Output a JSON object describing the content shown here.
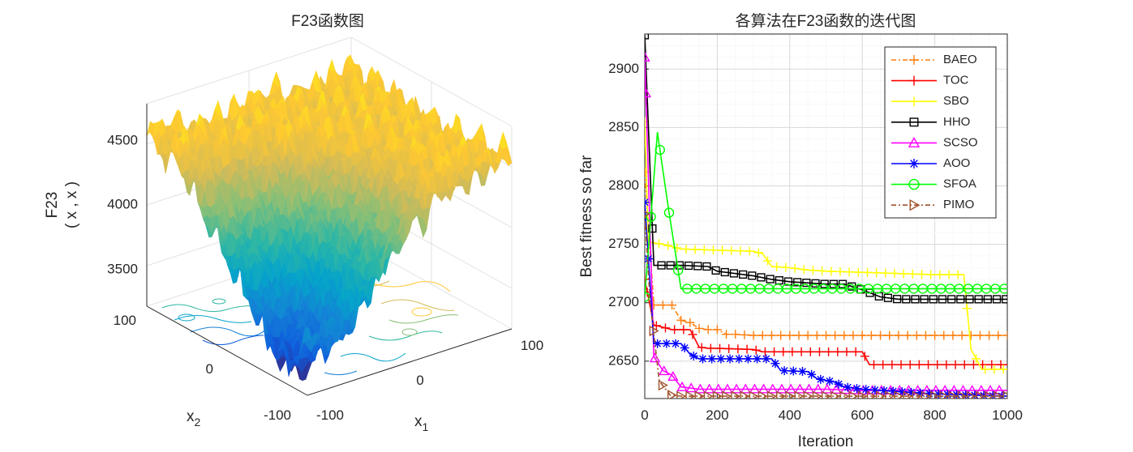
{
  "chart_data": [
    {
      "type": "surface",
      "title": "F23函数图",
      "xlabel": "x",
      "xlabel_sub": "1",
      "ylabel": "x",
      "ylabel_sub": "2",
      "zlabel_line1": "F23",
      "zlabel_line2": "( x , x )",
      "zlabel_sub1": "1",
      "zlabel_sub2": "2",
      "xlim": [
        -100,
        100
      ],
      "ylim": [
        -100,
        100
      ],
      "zticks": [
        "3500",
        "4000",
        "4500"
      ],
      "xticks": [
        "-100",
        "0",
        "100"
      ],
      "yticks": [
        "-100",
        "0",
        "100"
      ],
      "colormap": [
        "#352a87",
        "#0f5cdd",
        "#1481d6",
        "#06a4ca",
        "#2eb7a4",
        "#87bf77",
        "#d1bb59",
        "#fec832",
        "#f9fb0e"
      ]
    },
    {
      "type": "line",
      "title": "各算法在F23函数的迭代图",
      "xlabel": "Iteration",
      "ylabel": "Best fitness so far",
      "xlim": [
        0,
        1000
      ],
      "ylim": [
        2618,
        2930
      ],
      "xticks": [
        "0",
        "200",
        "400",
        "600",
        "800",
        "1000"
      ],
      "yticks": [
        "2650",
        "2700",
        "2750",
        "2800",
        "2850",
        "2900"
      ],
      "grid": true,
      "legend_position": "top-right",
      "series": [
        {
          "name": "BAEO",
          "color": "#ff7f0e",
          "marker": "+",
          "dash": "6,3,2,3",
          "points": [
            [
              0,
              2812
            ],
            [
              25,
              2698
            ],
            [
              50,
              2698
            ],
            [
              75,
              2698
            ],
            [
              100,
              2685
            ],
            [
              125,
              2683
            ],
            [
              150,
              2678
            ],
            [
              175,
              2677
            ],
            [
              200,
              2677
            ],
            [
              225,
              2673
            ],
            [
              250,
              2673
            ],
            [
              300,
              2672
            ],
            [
              400,
              2672
            ],
            [
              500,
              2672
            ],
            [
              600,
              2672
            ],
            [
              700,
              2672
            ],
            [
              800,
              2672
            ],
            [
              900,
              2672
            ],
            [
              1000,
              2672
            ]
          ]
        },
        {
          "name": "TOC",
          "color": "#ff0000",
          "marker": "+",
          "dash": "",
          "points": [
            [
              0,
              2720
            ],
            [
              25,
              2681
            ],
            [
              50,
              2679
            ],
            [
              75,
              2677
            ],
            [
              100,
              2677
            ],
            [
              125,
              2677
            ],
            [
              150,
              2662
            ],
            [
              175,
              2661
            ],
            [
              200,
              2661
            ],
            [
              300,
              2660
            ],
            [
              325,
              2658
            ],
            [
              400,
              2658
            ],
            [
              500,
              2658
            ],
            [
              600,
              2658
            ],
            [
              620,
              2647
            ],
            [
              700,
              2647
            ],
            [
              800,
              2647
            ],
            [
              900,
              2647
            ],
            [
              1000,
              2647
            ]
          ]
        },
        {
          "name": "SBO",
          "color": "#ffff00",
          "marker": "+",
          "dash": "",
          "points": [
            [
              0,
              2855
            ],
            [
              10,
              2752
            ],
            [
              50,
              2750
            ],
            [
              75,
              2748
            ],
            [
              100,
              2746
            ],
            [
              200,
              2745
            ],
            [
              300,
              2744
            ],
            [
              325,
              2742
            ],
            [
              350,
              2731
            ],
            [
              400,
              2730
            ],
            [
              450,
              2728
            ],
            [
              500,
              2727
            ],
            [
              600,
              2726
            ],
            [
              700,
              2725
            ],
            [
              800,
              2724
            ],
            [
              880,
              2724
            ],
            [
              900,
              2660
            ],
            [
              930,
              2643
            ],
            [
              1000,
              2643
            ]
          ]
        },
        {
          "name": "HHO",
          "color": "#000000",
          "marker": "square",
          "dash": "",
          "points": [
            [
              0,
              2929
            ],
            [
              25,
              2732
            ],
            [
              100,
              2732
            ],
            [
              175,
              2731
            ],
            [
              200,
              2727
            ],
            [
              250,
              2725
            ],
            [
              300,
              2723
            ],
            [
              350,
              2720
            ],
            [
              400,
              2718
            ],
            [
              500,
              2716
            ],
            [
              550,
              2716
            ],
            [
              600,
              2711
            ],
            [
              650,
              2705
            ],
            [
              700,
              2703
            ],
            [
              800,
              2703
            ],
            [
              900,
              2703
            ],
            [
              1000,
              2703
            ]
          ]
        },
        {
          "name": "SCSO",
          "color": "#ff00ff",
          "marker": "triangle",
          "dash": "",
          "points": [
            [
              0,
              2910
            ],
            [
              25,
              2654
            ],
            [
              50,
              2642
            ],
            [
              75,
              2638
            ],
            [
              100,
              2628
            ],
            [
              150,
              2626
            ],
            [
              200,
              2626
            ],
            [
              300,
              2626
            ],
            [
              400,
              2626
            ],
            [
              500,
              2626
            ],
            [
              600,
              2625
            ],
            [
              700,
              2625
            ],
            [
              800,
              2625
            ],
            [
              900,
              2625
            ],
            [
              1000,
              2625
            ]
          ]
        },
        {
          "name": "AOO",
          "color": "#0000ff",
          "marker": "asterisk",
          "dash": "",
          "points": [
            [
              0,
              2786
            ],
            [
              25,
              2665
            ],
            [
              50,
              2665
            ],
            [
              100,
              2665
            ],
            [
              125,
              2656
            ],
            [
              150,
              2652
            ],
            [
              250,
              2652
            ],
            [
              350,
              2652
            ],
            [
              375,
              2642
            ],
            [
              450,
              2641
            ],
            [
              475,
              2635
            ],
            [
              525,
              2632
            ],
            [
              550,
              2628
            ],
            [
              600,
              2626
            ],
            [
              700,
              2624
            ],
            [
              800,
              2622
            ],
            [
              900,
              2621
            ],
            [
              1000,
              2620
            ]
          ]
        },
        {
          "name": "SFOA",
          "color": "#00ff00",
          "marker": "circle",
          "dash": "",
          "points": [
            [
              0,
              2705
            ],
            [
              35,
              2846
            ],
            [
              65,
              2781
            ],
            [
              100,
              2712
            ],
            [
              200,
              2712
            ],
            [
              300,
              2712
            ],
            [
              400,
              2712
            ],
            [
              500,
              2712
            ],
            [
              600,
              2712
            ],
            [
              700,
              2712
            ],
            [
              800,
              2712
            ],
            [
              900,
              2712
            ],
            [
              1000,
              2712
            ]
          ]
        },
        {
          "name": "PIMO",
          "color": "#a0522d",
          "marker": "triangle-right",
          "dash": "6,3,2,3",
          "points": [
            [
              0,
              2776
            ],
            [
              15,
              2700
            ],
            [
              40,
              2633
            ],
            [
              70,
              2621
            ],
            [
              100,
              2620
            ],
            [
              200,
              2620
            ],
            [
              300,
              2620
            ],
            [
              400,
              2620
            ],
            [
              500,
              2620
            ],
            [
              600,
              2620
            ],
            [
              700,
              2620
            ],
            [
              800,
              2620
            ],
            [
              900,
              2620
            ],
            [
              1000,
              2620
            ]
          ]
        }
      ]
    }
  ]
}
